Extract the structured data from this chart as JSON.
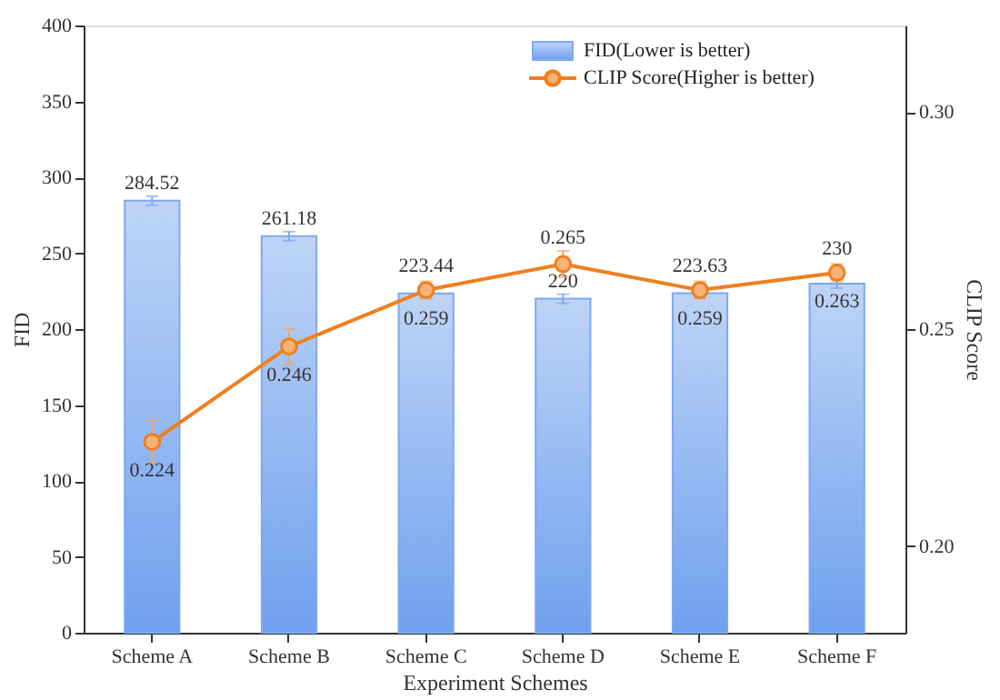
{
  "chart_data": {
    "type": "bar",
    "xlabel": "Experiment Schemes",
    "ylabel": "FID",
    "y2label": "CLIP Score",
    "categories": [
      "Scheme A",
      "Scheme B",
      "Scheme C",
      "Scheme D",
      "Scheme E",
      "Scheme F"
    ],
    "series": [
      {
        "name": "FID(Lower is better)",
        "color": "#6fa0ee",
        "values": [
          284.52,
          261.18,
          223.44,
          220,
          223.63,
          230
        ],
        "errors": [
          3,
          3,
          3,
          3,
          3,
          3
        ]
      },
      {
        "name": "CLIP Score(Higher is better)",
        "type": "line",
        "axis": "y2",
        "color": "#f07f1e",
        "marker": "circle",
        "values": [
          0.224,
          0.246,
          0.259,
          0.265,
          0.259,
          0.263
        ],
        "errors": [
          0.005,
          0.004,
          0.002,
          0.003,
          0.002,
          0.002
        ]
      }
    ],
    "ylim": [
      0,
      400
    ],
    "yticks": [
      0,
      50,
      100,
      150,
      200,
      250,
      300,
      350,
      400
    ],
    "y2lim": [
      0.18,
      0.32
    ],
    "y2ticks": [
      {
        "value": 0.2,
        "label": "0.20"
      },
      0.25,
      {
        "value": 0.3,
        "label": "0.30"
      }
    ],
    "data_labels": true,
    "legend": "top right",
    "grid": false
  }
}
